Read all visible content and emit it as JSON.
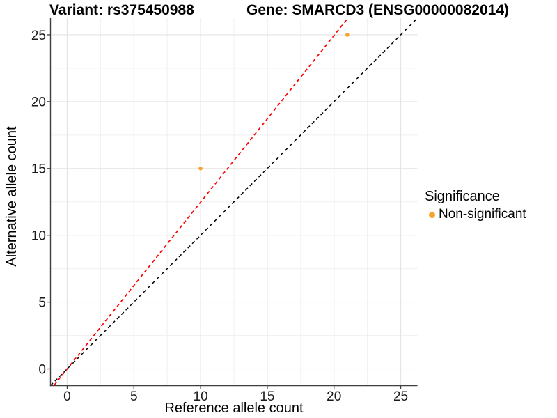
{
  "chart_data": {
    "type": "scatter",
    "title_left": "Variant: rs375450988",
    "title_right": "Gene: SMARCD3 (ENSG00000082014)",
    "xlabel": "Reference allele count",
    "ylabel": "Alternative allele count",
    "xlim": [
      -1.25,
      26.25
    ],
    "ylim": [
      -1.25,
      26.25
    ],
    "xticks": [
      0,
      5,
      10,
      15,
      20,
      25
    ],
    "yticks": [
      0,
      5,
      10,
      15,
      20,
      25
    ],
    "minor_grid_offset": 2.5,
    "grid": true,
    "legend_position": "right",
    "series": [
      {
        "name": "Non-significant",
        "color": "#F9A232",
        "points": [
          {
            "x": 10,
            "y": 15
          },
          {
            "x": 21,
            "y": 25
          }
        ]
      }
    ],
    "lines": [
      {
        "name": "fitted-line",
        "color": "#FF0000",
        "linestyle": "dashed",
        "slope": 1.2477,
        "intercept": 0
      },
      {
        "name": "identity-line",
        "color": "#000000",
        "linestyle": "dashed",
        "slope": 1,
        "intercept": 0
      }
    ],
    "legend": {
      "title": "Significance",
      "items": [
        {
          "label": "Non-significant",
          "color": "#F9A232"
        }
      ]
    },
    "colors": {
      "grid_major": "#E4E4E4",
      "grid_minor": "#F0F0F0",
      "axis_line": "#3F3F3F",
      "tick_mark": "#3F3F3F",
      "tick_label": "#1A1A1A"
    }
  }
}
